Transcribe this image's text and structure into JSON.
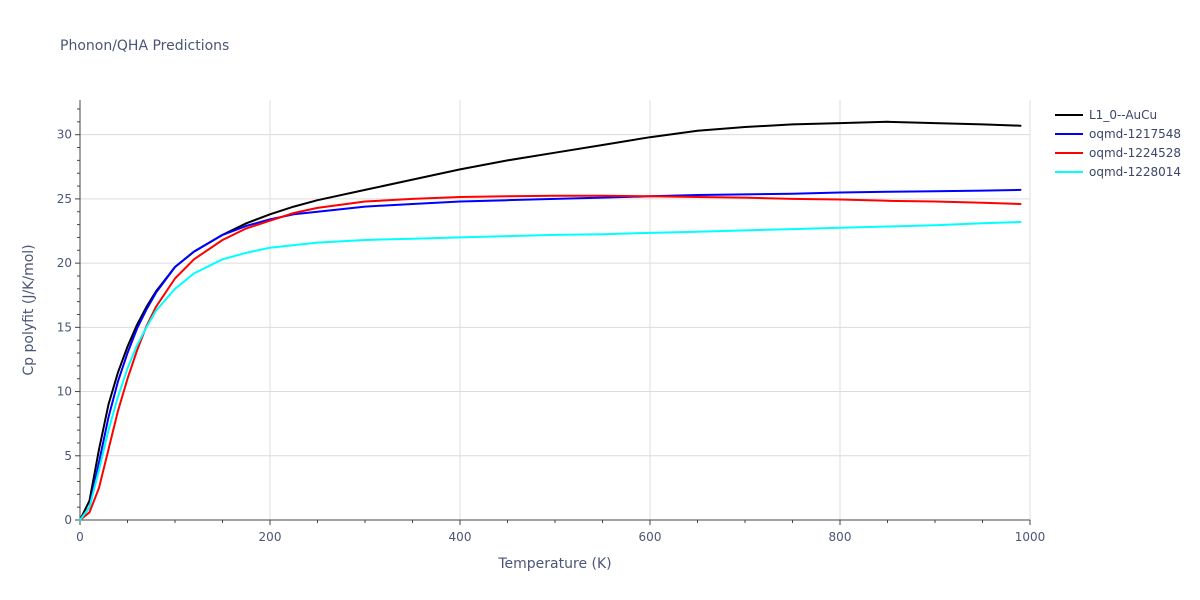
{
  "chart_data": {
    "type": "line",
    "title": "Phonon/QHA Predictions",
    "xlabel": "Temperature (K)",
    "ylabel": "Cp polyfit (J/K/mol)",
    "xlim": [
      0,
      1000
    ],
    "ylim": [
      0,
      32.7
    ],
    "x_ticks": [
      0,
      200,
      400,
      600,
      800,
      1000
    ],
    "y_ticks": [
      0,
      5,
      10,
      15,
      20,
      25,
      30
    ],
    "grid": true,
    "legend_position": "top-right",
    "series": [
      {
        "name": "L1_0--AuCu",
        "color": "#000000",
        "x": [
          0,
          10,
          20,
          30,
          40,
          50,
          60,
          70,
          80,
          100,
          120,
          150,
          175,
          200,
          225,
          250,
          300,
          350,
          400,
          450,
          500,
          550,
          600,
          650,
          700,
          750,
          800,
          850,
          900,
          950,
          990
        ],
        "y": [
          0,
          1.5,
          5.5,
          9.0,
          11.5,
          13.5,
          15.2,
          16.6,
          17.8,
          19.7,
          20.9,
          22.2,
          23.1,
          23.8,
          24.4,
          24.9,
          25.7,
          26.5,
          27.3,
          28.0,
          28.6,
          29.2,
          29.8,
          30.3,
          30.6,
          30.8,
          30.9,
          31.0,
          30.9,
          30.8,
          30.7
        ]
      },
      {
        "name": "oqmd-1217548",
        "color": "#0000ff",
        "x": [
          0,
          10,
          20,
          30,
          40,
          50,
          60,
          70,
          80,
          100,
          120,
          150,
          175,
          200,
          225,
          250,
          300,
          350,
          400,
          450,
          500,
          550,
          600,
          650,
          700,
          750,
          800,
          850,
          900,
          950,
          990
        ],
        "y": [
          0,
          1.0,
          4.5,
          8.0,
          10.8,
          13.0,
          14.9,
          16.4,
          17.7,
          19.7,
          20.9,
          22.2,
          22.9,
          23.4,
          23.8,
          24.0,
          24.4,
          24.6,
          24.8,
          24.9,
          25.0,
          25.1,
          25.2,
          25.3,
          25.35,
          25.4,
          25.5,
          25.55,
          25.6,
          25.65,
          25.7
        ]
      },
      {
        "name": "oqmd-1224528",
        "color": "#ff0000",
        "x": [
          0,
          10,
          20,
          30,
          40,
          50,
          60,
          70,
          80,
          100,
          120,
          150,
          175,
          200,
          225,
          250,
          300,
          350,
          400,
          450,
          500,
          550,
          600,
          650,
          700,
          750,
          800,
          850,
          900,
          950,
          990
        ],
        "y": [
          0,
          0.6,
          2.5,
          5.5,
          8.5,
          11.0,
          13.2,
          15.1,
          16.6,
          18.8,
          20.3,
          21.8,
          22.7,
          23.3,
          23.9,
          24.3,
          24.8,
          25.0,
          25.15,
          25.2,
          25.25,
          25.25,
          25.2,
          25.15,
          25.1,
          25.0,
          24.95,
          24.85,
          24.8,
          24.7,
          24.6
        ]
      },
      {
        "name": "oqmd-1228014",
        "color": "#00ffff",
        "x": [
          0,
          10,
          20,
          30,
          40,
          50,
          60,
          70,
          80,
          100,
          120,
          150,
          175,
          200,
          225,
          250,
          300,
          350,
          400,
          450,
          500,
          550,
          600,
          650,
          700,
          750,
          800,
          850,
          900,
          950,
          990
        ],
        "y": [
          0,
          1.0,
          3.9,
          7.0,
          9.6,
          11.8,
          13.6,
          15.0,
          16.3,
          18.0,
          19.2,
          20.3,
          20.8,
          21.2,
          21.4,
          21.6,
          21.8,
          21.9,
          22.0,
          22.1,
          22.2,
          22.25,
          22.35,
          22.45,
          22.55,
          22.65,
          22.75,
          22.85,
          22.95,
          23.1,
          23.2
        ]
      }
    ]
  }
}
